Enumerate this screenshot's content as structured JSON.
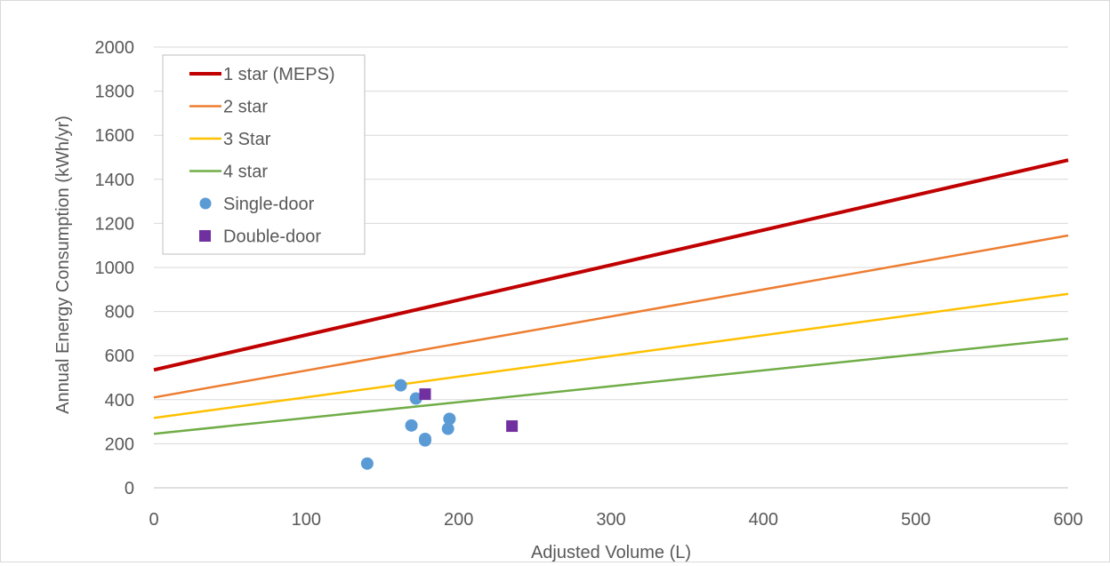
{
  "chart_data": {
    "type": "scatter",
    "xlabel": "Adjusted Volume (L)",
    "ylabel": "Annual Energy Consumption (kWh/yr)",
    "xlim": [
      0,
      600
    ],
    "ylim": [
      0,
      2000
    ],
    "x_ticks": [
      0,
      100,
      200,
      300,
      400,
      500,
      600
    ],
    "y_ticks": [
      0,
      200,
      400,
      600,
      800,
      1000,
      1200,
      1400,
      1600,
      1800,
      2000
    ],
    "grid": "horizontal",
    "legend_position": "top-left",
    "series": [
      {
        "name": "1 star (MEPS)",
        "kind": "line",
        "color": "#c00000",
        "x": [
          0,
          600
        ],
        "y": [
          535,
          1487
        ]
      },
      {
        "name": "2 star",
        "kind": "line",
        "color": "#ed7d31",
        "x": [
          0,
          600
        ],
        "y": [
          410,
          1145
        ]
      },
      {
        "name": "3 Star",
        "kind": "line",
        "color": "#ffc000",
        "x": [
          0,
          600
        ],
        "y": [
          317,
          880
        ]
      },
      {
        "name": "4 star",
        "kind": "line",
        "color": "#70ad47",
        "x": [
          0,
          600
        ],
        "y": [
          245,
          677
        ]
      },
      {
        "name": "Single-door",
        "kind": "scatter",
        "marker": "circle",
        "color": "#5b9bd5",
        "x": [
          140,
          162,
          169,
          172,
          178,
          178,
          193,
          194
        ],
        "y": [
          110,
          465,
          283,
          405,
          222,
          215,
          268,
          313
        ]
      },
      {
        "name": "Double-door",
        "kind": "scatter",
        "marker": "square",
        "color": "#7030a0",
        "x": [
          178,
          235
        ],
        "y": [
          425,
          280
        ]
      }
    ]
  }
}
